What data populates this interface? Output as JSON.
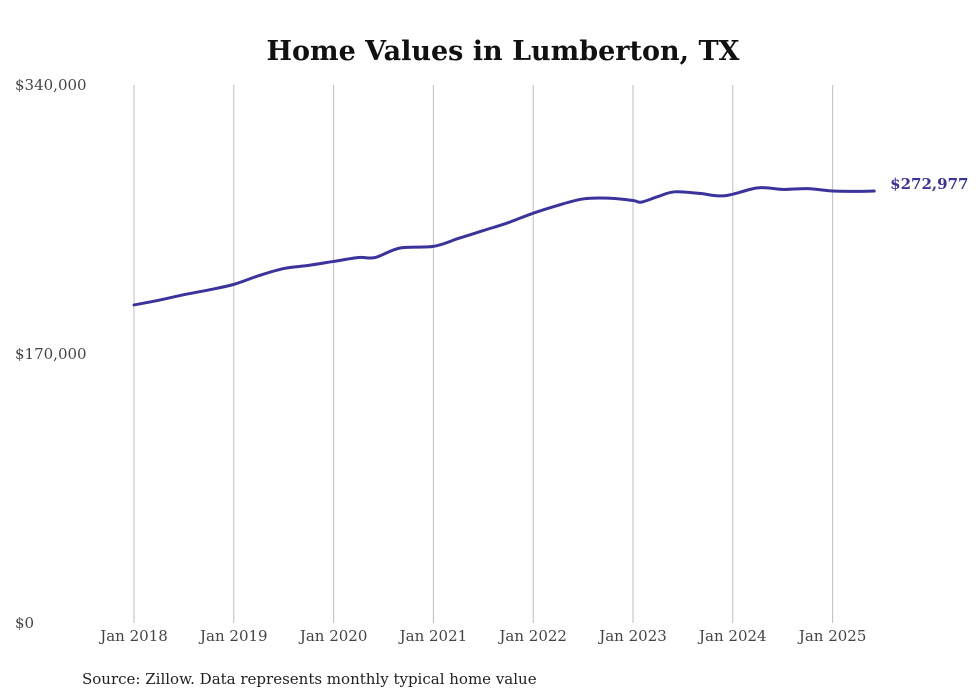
{
  "chart_data": {
    "type": "line",
    "title": "Home Values in Lumberton, TX",
    "xlabel": "",
    "ylabel": "",
    "ylim": [
      0,
      340000
    ],
    "y_ticks": [
      0,
      170000,
      340000
    ],
    "y_tick_labels": [
      "$0",
      "$170,000",
      "$340,000"
    ],
    "x_tick_labels": [
      "Jan 2018",
      "Jan 2019",
      "Jan 2020",
      "Jan 2021",
      "Jan 2022",
      "Jan 2023",
      "Jan 2024",
      "Jan 2025"
    ],
    "grid": "vertical",
    "series": [
      {
        "name": "Typical home value",
        "color": "#3a339c",
        "points": [
          [
            "2018-01",
            201000
          ],
          [
            "2018-04",
            204000
          ],
          [
            "2018-07",
            207500
          ],
          [
            "2018-10",
            210500
          ],
          [
            "2019-01",
            214000
          ],
          [
            "2019-04",
            219500
          ],
          [
            "2019-07",
            224000
          ],
          [
            "2019-10",
            226000
          ],
          [
            "2020-01",
            228500
          ],
          [
            "2020-04",
            231000
          ],
          [
            "2020-06",
            231000
          ],
          [
            "2020-09",
            237000
          ],
          [
            "2021-01",
            238000
          ],
          [
            "2021-04",
            243000
          ],
          [
            "2021-07",
            248000
          ],
          [
            "2021-10",
            253000
          ],
          [
            "2022-01",
            259000
          ],
          [
            "2022-04",
            264000
          ],
          [
            "2022-07",
            268000
          ],
          [
            "2022-10",
            268500
          ],
          [
            "2023-01",
            267000
          ],
          [
            "2023-02",
            266000
          ],
          [
            "2023-04",
            269500
          ],
          [
            "2023-06",
            272500
          ],
          [
            "2023-09",
            271500
          ],
          [
            "2023-12",
            270000
          ],
          [
            "2024-04",
            275000
          ],
          [
            "2024-07",
            274000
          ],
          [
            "2024-10",
            274500
          ],
          [
            "2025-01",
            273000
          ],
          [
            "2025-04",
            272800
          ],
          [
            "2025-06",
            272977
          ]
        ],
        "end_label": "$272,977"
      }
    ],
    "source": "Source: Zillow. Data represents monthly typical home value"
  }
}
